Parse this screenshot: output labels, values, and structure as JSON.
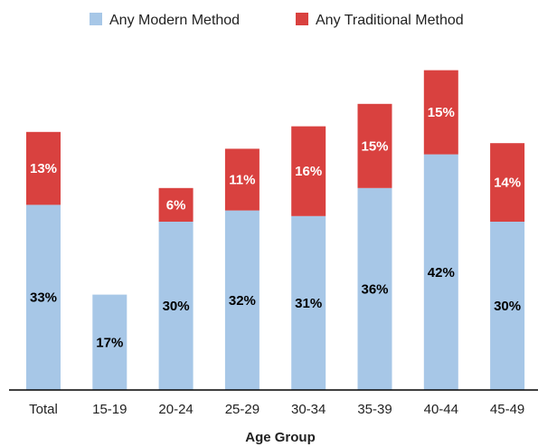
{
  "chart_data": {
    "type": "bar",
    "stacked": true,
    "xlabel": "Age Group",
    "ylabel": "",
    "ylim": [
      0,
      60
    ],
    "grid": false,
    "legend_position": "top",
    "categories": [
      "Total",
      "15-19",
      "20-24",
      "25-29",
      "30-34",
      "35-39",
      "40-44",
      "45-49"
    ],
    "series": [
      {
        "name": "Any Modern Method",
        "color": "#a7c7e7",
        "values": [
          33,
          17,
          30,
          32,
          31,
          36,
          42,
          30
        ],
        "labels": [
          "33%",
          "17%",
          "30%",
          "32%",
          "31%",
          "36%",
          "42%",
          "30%"
        ]
      },
      {
        "name": "Any Traditional Method",
        "color": "#d9413f",
        "values": [
          13,
          null,
          6,
          11,
          16,
          15,
          15,
          14
        ],
        "labels": [
          "13%",
          "",
          "6%",
          "11%",
          "16%",
          "15%",
          "15%",
          "14%"
        ]
      }
    ]
  }
}
